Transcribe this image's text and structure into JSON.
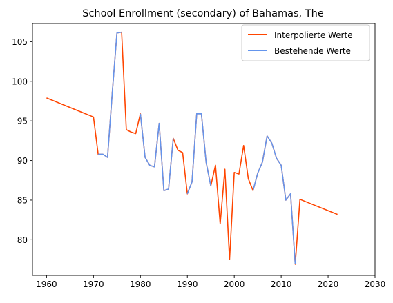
{
  "chart_data": {
    "type": "line",
    "title": "School Enrollment (secondary) of Bahamas, The",
    "xlabel": "",
    "ylabel": "",
    "xlim": [
      1957,
      2030
    ],
    "ylim": [
      75.5,
      107.3
    ],
    "xticks": [
      1960,
      1970,
      1980,
      1990,
      2000,
      2010,
      2020,
      2030
    ],
    "yticks": [
      80,
      85,
      90,
      95,
      100,
      105
    ],
    "grid": false,
    "legend_position": "top-right",
    "series": [
      {
        "name": "Interpolierte Werte",
        "color": "#ff4500",
        "x": [
          1960,
          1970,
          1971,
          1972,
          1973,
          1974,
          1975,
          1976,
          1977,
          1978,
          1979,
          1980,
          1981,
          1982,
          1983,
          1984,
          1985,
          1986,
          1987,
          1988,
          1989,
          1990,
          1991,
          1992,
          1993,
          1994,
          1995,
          1996,
          1997,
          1998,
          1999,
          2000,
          2001,
          2002,
          2003,
          2004,
          2005,
          2006,
          2007,
          2008,
          2009,
          2010,
          2011,
          2012,
          2013,
          2014,
          2022
        ],
        "y": [
          97.9,
          95.5,
          90.8,
          90.8,
          90.4,
          98.5,
          106.1,
          106.2,
          93.9,
          93.6,
          93.4,
          95.9,
          90.4,
          89.4,
          89.2,
          94.7,
          86.2,
          86.4,
          92.8,
          91.3,
          91.0,
          85.8,
          87.3,
          95.9,
          95.9,
          89.8,
          86.8,
          89.4,
          82.0,
          88.9,
          77.5,
          88.5,
          88.3,
          91.9,
          87.7,
          86.2,
          88.4,
          89.8,
          93.1,
          92.2,
          90.3,
          89.4,
          85.0,
          85.8,
          76.9,
          85.1,
          83.2
        ]
      },
      {
        "name": "Bestehende Werte",
        "color": "#6495ed",
        "x": [
          1971,
          1972,
          1973,
          1974,
          1975,
          1976,
          null,
          1980,
          1981,
          1982,
          1983,
          1984,
          1985,
          1986,
          1987,
          null,
          1990,
          1991,
          1992,
          1993,
          1994,
          1995,
          null,
          2004,
          2005,
          2006,
          2007,
          2008,
          2009,
          2010,
          2011,
          2012,
          2013
        ],
        "y": [
          90.8,
          90.8,
          90.4,
          98.5,
          106.1,
          106.2,
          null,
          95.9,
          90.4,
          89.4,
          89.2,
          94.7,
          86.2,
          86.4,
          92.8,
          null,
          85.8,
          87.3,
          95.9,
          95.9,
          89.8,
          86.8,
          null,
          86.2,
          88.4,
          89.8,
          93.1,
          92.2,
          90.3,
          89.4,
          85.0,
          85.8,
          76.9
        ]
      }
    ]
  }
}
